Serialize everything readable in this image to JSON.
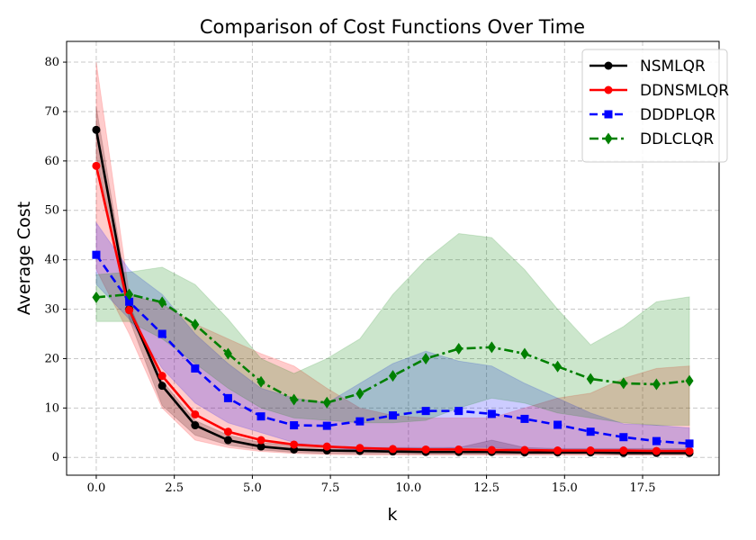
{
  "chart_data": {
    "type": "line",
    "title": "Comparison of Cost Functions Over Time",
    "xlabel": "k",
    "ylabel": "Average Cost",
    "xlim": [
      -0.95,
      19.95
    ],
    "ylim": [
      -3.6,
      84.2
    ],
    "grid": true,
    "legend_position": "top-right",
    "x_ticks": [
      "0.0",
      "2.5",
      "5.0",
      "7.5",
      "10.0",
      "12.5",
      "15.0",
      "17.5"
    ],
    "x_tick_values": [
      0,
      2.5,
      5,
      7.5,
      10,
      12.5,
      15,
      17.5
    ],
    "y_ticks": [
      "0",
      "10",
      "20",
      "30",
      "40",
      "50",
      "60",
      "70",
      "80"
    ],
    "y_tick_values": [
      0,
      10,
      20,
      30,
      40,
      50,
      60,
      70,
      80
    ],
    "x": [
      0,
      1.056,
      2.111,
      3.167,
      4.222,
      5.278,
      6.333,
      7.389,
      8.444,
      9.5,
      10.556,
      11.611,
      12.667,
      13.722,
      14.778,
      15.833,
      16.889,
      17.944,
      19
    ],
    "series": [
      {
        "name": "NSMLQR",
        "color": "#000000",
        "marker": "circle",
        "dash": "solid",
        "values": [
          66.3,
          30,
          14.5,
          6.5,
          3.5,
          2.2,
          1.6,
          1.4,
          1.3,
          1.2,
          1.1,
          1.1,
          1.1,
          1.0,
          1.0,
          1.0,
          0.9,
          0.9,
          0.9
        ],
        "upper": [
          71,
          31,
          15.5,
          7.5,
          4.5,
          3,
          2.5,
          2.2,
          2.0,
          2.0,
          2.0,
          2.0,
          3.5,
          2.0,
          1.8,
          1.8,
          1.8,
          1.8,
          1.8
        ],
        "lower": [
          61,
          28,
          10.5,
          4.5,
          2.5,
          1.5,
          1.0,
          0.8,
          0.7,
          0.7,
          0.6,
          0.6,
          0.6,
          0.6,
          0.6,
          0.6,
          0.5,
          0.5,
          0.5
        ]
      },
      {
        "name": "DDNSMLQR",
        "color": "#ff0000",
        "marker": "circle",
        "dash": "solid",
        "values": [
          59,
          29.8,
          16.5,
          8.7,
          5.2,
          3.5,
          2.6,
          2.2,
          1.9,
          1.7,
          1.6,
          1.6,
          1.5,
          1.5,
          1.4,
          1.4,
          1.4,
          1.3,
          1.3
        ],
        "upper": [
          80,
          33,
          31,
          27,
          24,
          21,
          18.5,
          14,
          10,
          8.5,
          8,
          8,
          8,
          10,
          12,
          13,
          16,
          18,
          18.5
        ],
        "lower": [
          38,
          25,
          10,
          3.5,
          2,
          1.2,
          0.8,
          0.6,
          0.5,
          0.5,
          0.5,
          0.5,
          0.5,
          0.5,
          0.5,
          0.5,
          0.5,
          0.5,
          0.5
        ]
      },
      {
        "name": "DDDPLQR",
        "color": "#0000ff",
        "marker": "square",
        "dash": "dashed",
        "values": [
          41,
          31.5,
          25,
          18,
          12,
          8.3,
          6.5,
          6.4,
          7.3,
          8.5,
          9.4,
          9.4,
          8.8,
          7.8,
          6.6,
          5.2,
          4.1,
          3.3,
          2.8
        ],
        "upper": [
          47.5,
          38,
          33,
          25,
          19,
          14,
          12,
          11,
          15,
          19,
          21.5,
          19.5,
          18.5,
          15,
          12,
          9,
          6.8,
          6.5,
          6
        ],
        "lower": [
          35,
          28,
          18,
          11,
          7,
          5,
          3,
          2,
          1.5,
          1.5,
          1.5,
          2,
          2,
          1.5,
          1.5,
          1.5,
          1.5,
          1.5,
          1.5
        ]
      },
      {
        "name": "DDLCLQR",
        "color": "#008000",
        "marker": "diamond",
        "dash": "dashdot",
        "values": [
          32.4,
          33,
          31.4,
          26.9,
          21,
          15.3,
          11.7,
          11.1,
          12.9,
          16.5,
          20,
          22,
          22.3,
          21,
          18.4,
          15.9,
          15,
          14.8,
          15.5
        ],
        "upper": [
          37,
          37.5,
          38.5,
          35,
          28,
          20,
          17,
          20,
          24,
          33,
          40,
          45.3,
          44.5,
          38,
          30,
          22.8,
          26.5,
          31.5,
          32.5
        ],
        "lower": [
          27.5,
          27.5,
          24,
          19,
          14,
          10,
          8,
          7.5,
          7,
          7,
          7.5,
          10,
          12,
          11,
          9,
          8,
          7,
          6.5,
          6.5
        ]
      }
    ]
  }
}
